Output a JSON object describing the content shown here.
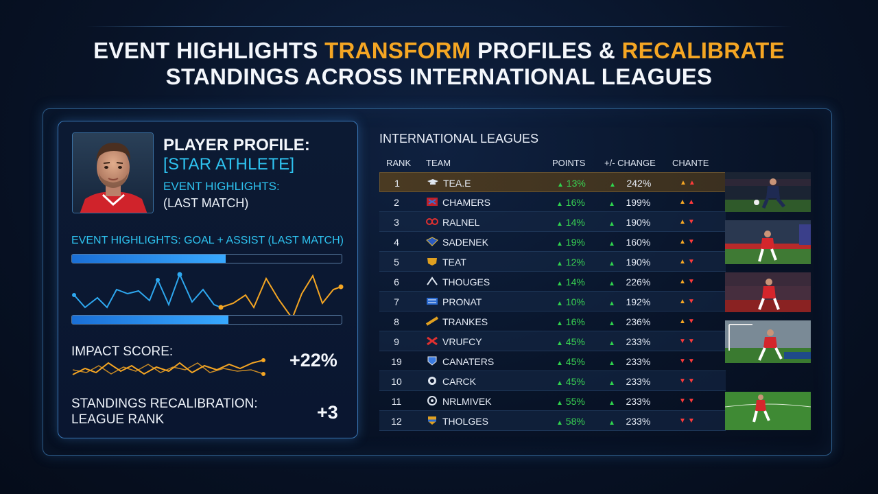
{
  "header": {
    "line1_part1": "EVENT HIGHLIGHTS ",
    "line1_hl1": "TRANSFORM",
    "line1_part2": " PROFILES & ",
    "line1_hl2": "RECALIBRATE",
    "line2": "STANDINGS ACROSS INTERNATIONAL LEAGUES"
  },
  "profile": {
    "title": "PLAYER PROFILE:",
    "name": "[STAR ATHLETE]",
    "event_label": "EVENT HIGHLIGHTS:",
    "event_sub": "(LAST MATCH)",
    "event_line": "EVENT HIGHLIGHTS: GOAL + ASSIST (LAST MATCH)",
    "bar1_fill": 0.57,
    "bar2_fill": 0.58,
    "impact_label": "IMPACT SCORE:",
    "impact_value": "+22%",
    "recal_label": "STANDINGS RECALIBRATION: LEAGUE RANK",
    "recal_value": "+3"
  },
  "table": {
    "title": "INTERNATIONAL LEAGUES",
    "headers": {
      "rank": "RANK",
      "team": "TEAM",
      "points": "POINTS",
      "change": "+/- CHANGE",
      "trend": "CHANTE"
    },
    "rows": [
      {
        "rank": "1",
        "team": "TEA.E",
        "points": "13%",
        "change": "242%",
        "trend": "up-orange,up-red"
      },
      {
        "rank": "2",
        "team": "CHAMERS",
        "points": "16%",
        "change": "199%",
        "trend": "up-orange,up-red"
      },
      {
        "rank": "3",
        "team": "RALNEL",
        "points": "14%",
        "change": "190%",
        "trend": "up-orange,down-red"
      },
      {
        "rank": "4",
        "team": "SADENEK",
        "points": "19%",
        "change": "160%",
        "trend": "up-orange,down-red"
      },
      {
        "rank": "5",
        "team": "TEAT",
        "points": "12%",
        "change": "190%",
        "trend": "up-orange,down-red"
      },
      {
        "rank": "6",
        "team": "THOUGES",
        "points": "14%",
        "change": "226%",
        "trend": "up-orange,down-red"
      },
      {
        "rank": "7",
        "team": "PRONAT",
        "points": "10%",
        "change": "192%",
        "trend": "up-orange,down-red"
      },
      {
        "rank": "8",
        "team": "TRANKES",
        "points": "16%",
        "change": "236%",
        "trend": "up-orange,down-red"
      },
      {
        "rank": "9",
        "team": "VRUFCY",
        "points": "45%",
        "change": "233%",
        "trend": "down-red,down-red"
      },
      {
        "rank": "19",
        "team": "CANATERS",
        "points": "45%",
        "change": "233%",
        "trend": "down-red,down-red"
      },
      {
        "rank": "10",
        "team": "CARCK",
        "points": "45%",
        "change": "233%",
        "trend": "down-red,down-red"
      },
      {
        "rank": "11",
        "team": "NRLMIVEK",
        "points": "55%",
        "change": "233%",
        "trend": "down-red,down-red"
      },
      {
        "rank": "12",
        "team": "THOLGES",
        "points": "58%",
        "change": "233%",
        "trend": "down-red,down-red"
      }
    ]
  },
  "colors": {
    "accent": "#f5a623",
    "cyan": "#2ec3f0",
    "green": "#2fd34d",
    "red": "#ff3b3b"
  },
  "icons": {
    "trend_up": "triangle-up",
    "trend_down": "triangle-down"
  }
}
